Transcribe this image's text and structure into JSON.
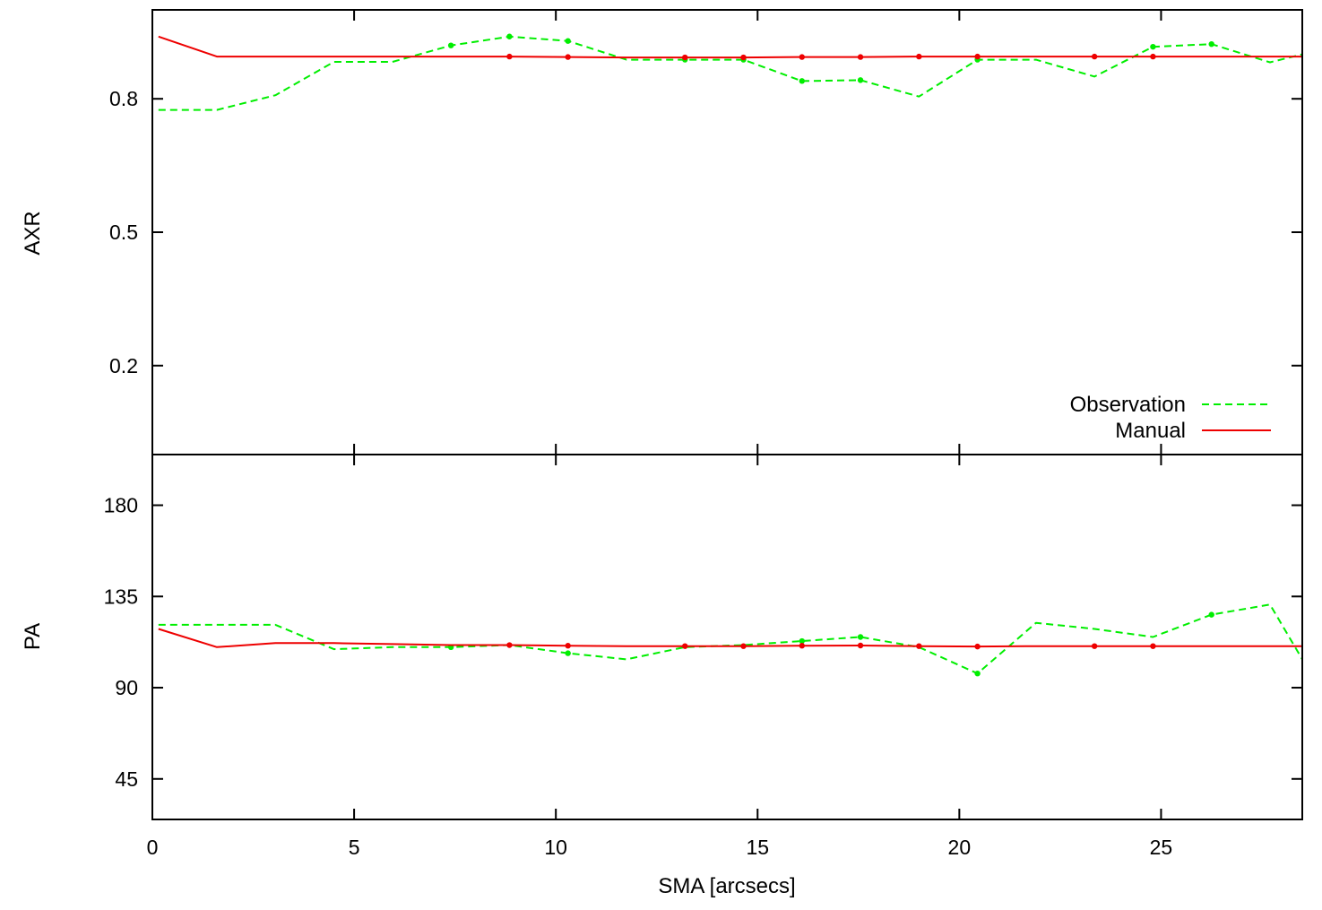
{
  "chart_data": [
    {
      "type": "line",
      "panel": "top",
      "ylabel": "AXR",
      "xlim": [
        0,
        28.5
      ],
      "ylim": [
        0,
        1
      ],
      "yticks": [
        0.2,
        0.5,
        0.8
      ],
      "legend": {
        "placement": "bottom-right"
      },
      "series": [
        {
          "name": "Observation",
          "color": "#00ee00",
          "dash": "dashed",
          "x": [
            0.15,
            1.6,
            3.05,
            4.5,
            5.95,
            7.4,
            8.85,
            10.3,
            11.75,
            13.2,
            14.65,
            16.1,
            17.55,
            19.0,
            20.45,
            21.9,
            23.35,
            24.8,
            26.25,
            27.7,
            28.5
          ],
          "y": [
            0.775,
            0.775,
            0.808,
            0.883,
            0.883,
            0.92,
            0.94,
            0.93,
            0.888,
            0.888,
            0.888,
            0.84,
            0.842,
            0.805,
            0.888,
            0.888,
            0.85,
            0.917,
            0.923,
            0.882,
            0.9
          ],
          "marker_x": [
            7.4,
            8.85,
            10.3,
            13.2,
            14.65,
            16.1,
            17.55,
            20.45,
            24.8,
            26.25
          ]
        },
        {
          "name": "Manual",
          "color": "#ee0000",
          "dash": "solid",
          "x": [
            0.15,
            1.6,
            3.05,
            4.5,
            5.95,
            7.4,
            8.85,
            10.3,
            11.75,
            13.2,
            14.65,
            16.1,
            17.55,
            19.0,
            20.45,
            21.9,
            23.35,
            24.8,
            26.25,
            27.7,
            28.5
          ],
          "y": [
            0.94,
            0.895,
            0.895,
            0.895,
            0.895,
            0.895,
            0.895,
            0.894,
            0.893,
            0.893,
            0.893,
            0.894,
            0.894,
            0.895,
            0.895,
            0.895,
            0.895,
            0.895,
            0.895,
            0.895,
            0.895
          ],
          "marker_x": [
            8.85,
            10.3,
            13.2,
            14.65,
            16.1,
            17.55,
            19.0,
            20.45,
            23.35,
            24.8
          ]
        }
      ]
    },
    {
      "type": "line",
      "panel": "bottom",
      "xlabel": "SMA [arcsecs]",
      "ylabel": "PA",
      "xlim": [
        0,
        28.5
      ],
      "ylim": [
        25,
        205
      ],
      "xticks": [
        0,
        5,
        10,
        15,
        20,
        25
      ],
      "yticks": [
        45,
        90,
        135,
        180
      ],
      "series": [
        {
          "name": "Observation",
          "color": "#00ee00",
          "dash": "dashed",
          "x": [
            0.15,
            1.6,
            3.05,
            4.5,
            5.95,
            7.4,
            8.85,
            10.3,
            11.75,
            13.2,
            14.65,
            16.1,
            17.55,
            19.0,
            20.45,
            21.9,
            23.35,
            24.8,
            26.25,
            27.7,
            28.5
          ],
          "y": [
            121,
            121,
            121,
            109,
            110,
            110,
            111,
            107,
            104,
            110,
            111,
            113,
            115,
            110,
            97,
            122,
            119,
            115,
            126,
            131,
            104
          ],
          "marker_x": [
            7.4,
            10.3,
            16.1,
            17.55,
            20.45,
            26.25
          ]
        },
        {
          "name": "Manual",
          "color": "#ee0000",
          "dash": "solid",
          "x": [
            0.15,
            1.6,
            3.05,
            4.5,
            5.95,
            7.4,
            8.85,
            10.3,
            11.75,
            13.2,
            14.65,
            16.1,
            17.55,
            19.0,
            20.45,
            21.9,
            23.35,
            24.8,
            26.25,
            27.7,
            28.5
          ],
          "y": [
            119,
            110,
            112,
            112,
            111.5,
            111,
            111,
            110.7,
            110.5,
            110.5,
            110.5,
            110.7,
            110.8,
            110.5,
            110.3,
            110.5,
            110.5,
            110.5,
            110.5,
            110.5,
            110.5
          ],
          "marker_x": [
            8.85,
            10.3,
            13.2,
            14.65,
            16.1,
            17.55,
            19.0,
            20.45,
            23.35,
            24.8
          ]
        }
      ]
    }
  ]
}
